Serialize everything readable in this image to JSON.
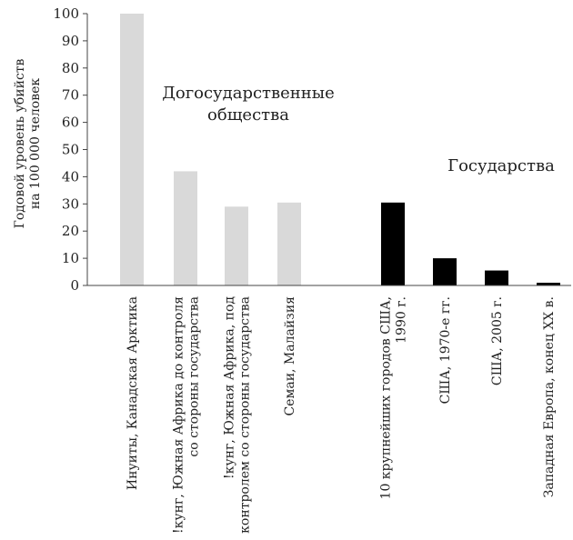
{
  "chart_data": {
    "type": "bar",
    "ylabel": [
      "Годовой уровень убийств",
      "на 100 000 человек"
    ],
    "ylim": [
      0,
      100
    ],
    "yticks": [
      0,
      10,
      20,
      30,
      40,
      50,
      60,
      70,
      80,
      90,
      100
    ],
    "grid": false,
    "groups": [
      {
        "label": [
          "Догосударственные",
          "общества"
        ],
        "color": "#d9d9d9"
      },
      {
        "label": [
          "Государства"
        ],
        "color": "#000000"
      }
    ],
    "categories": [
      [
        "Инуиты, Канадская Арктика"
      ],
      [
        "!кунг, Южная Африка до контроля",
        "со стороны государства"
      ],
      [
        "!кунг, Южная Африка, под",
        "контролем со стороны государства"
      ],
      [
        "Семаи, Малайзия"
      ],
      [
        "10 крупнейших городов США,",
        "1990 г."
      ],
      [
        "США, 1970-е гг."
      ],
      [
        "США, 2005 г."
      ],
      [
        "Западная Европа, конец XX в."
      ]
    ],
    "values": [
      100,
      42,
      29,
      30.5,
      30.5,
      10,
      5.5,
      1
    ],
    "category_group": [
      0,
      0,
      0,
      0,
      1,
      1,
      1,
      1
    ]
  }
}
